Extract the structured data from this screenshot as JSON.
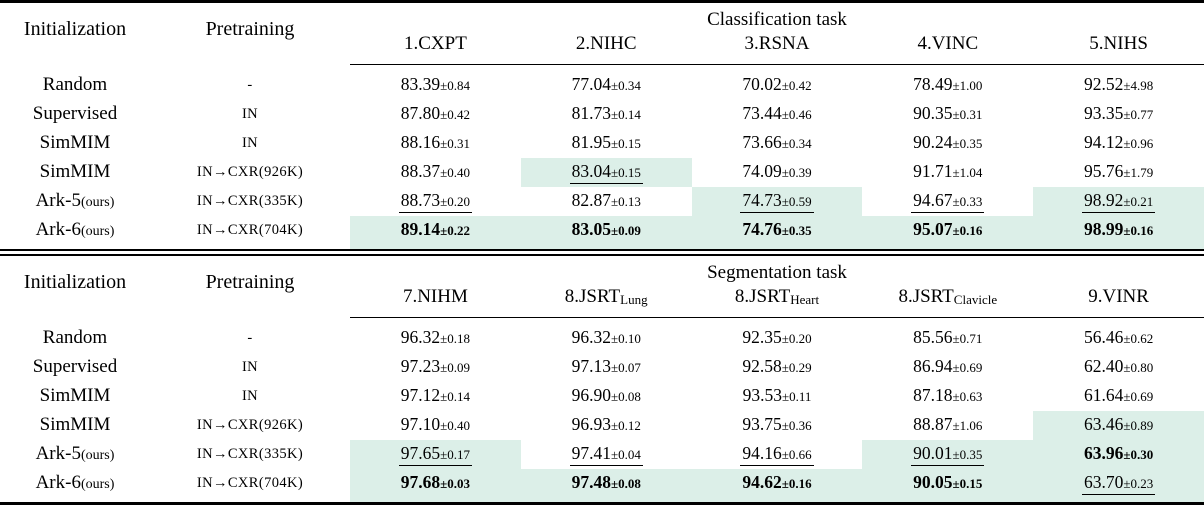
{
  "highlight_color": "#dcefe8",
  "tables": [
    {
      "id": "classification",
      "corner": {
        "initialization": "Initialization",
        "pretraining": "Pretraining"
      },
      "task_label": "Classification task",
      "columns": [
        "1.CXPT",
        "2.NIHC",
        "3.RSNA",
        "4.VINC",
        "5.NIHS"
      ],
      "column_subs": [
        "",
        "",
        "",
        "",
        ""
      ],
      "rows": [
        {
          "init": "Random",
          "init_small": "",
          "pretrain": "-",
          "cells": [
            {
              "v": "83.39",
              "e": "±0.84",
              "f": ""
            },
            {
              "v": "77.04",
              "e": "±0.34",
              "f": ""
            },
            {
              "v": "70.02",
              "e": "±0.42",
              "f": ""
            },
            {
              "v": "78.49",
              "e": "±1.00",
              "f": ""
            },
            {
              "v": "92.52",
              "e": "±4.98",
              "f": ""
            }
          ]
        },
        {
          "init": "Supervised",
          "init_small": "",
          "pretrain": "IN",
          "cells": [
            {
              "v": "87.80",
              "e": "±0.42",
              "f": ""
            },
            {
              "v": "81.73",
              "e": "±0.14",
              "f": ""
            },
            {
              "v": "73.44",
              "e": "±0.46",
              "f": ""
            },
            {
              "v": "90.35",
              "e": "±0.31",
              "f": ""
            },
            {
              "v": "93.35",
              "e": "±0.77",
              "f": ""
            }
          ]
        },
        {
          "init": "SimMIM",
          "init_small": "",
          "pretrain": "IN",
          "cells": [
            {
              "v": "88.16",
              "e": "±0.31",
              "f": ""
            },
            {
              "v": "81.95",
              "e": "±0.15",
              "f": ""
            },
            {
              "v": "73.66",
              "e": "±0.34",
              "f": ""
            },
            {
              "v": "90.24",
              "e": "±0.35",
              "f": ""
            },
            {
              "v": "94.12",
              "e": "±0.96",
              "f": ""
            }
          ]
        },
        {
          "init": "SimMIM",
          "init_small": "",
          "pretrain": "IN→CXR(926K)",
          "cells": [
            {
              "v": "88.37",
              "e": "±0.40",
              "f": ""
            },
            {
              "v": "83.04",
              "e": "±0.15",
              "f": "u h"
            },
            {
              "v": "74.09",
              "e": "±0.39",
              "f": ""
            },
            {
              "v": "91.71",
              "e": "±1.04",
              "f": ""
            },
            {
              "v": "95.76",
              "e": "±1.79",
              "f": ""
            }
          ]
        },
        {
          "init": "Ark-5",
          "init_small": "(ours)",
          "pretrain": "IN→CXR(335K)",
          "cells": [
            {
              "v": "88.73",
              "e": "±0.20",
              "f": "u"
            },
            {
              "v": "82.87",
              "e": "±0.13",
              "f": ""
            },
            {
              "v": "74.73",
              "e": "±0.59",
              "f": "u h"
            },
            {
              "v": "94.67",
              "e": "±0.33",
              "f": "u"
            },
            {
              "v": "98.92",
              "e": "±0.21",
              "f": "u h"
            }
          ]
        },
        {
          "init": "Ark-6",
          "init_small": "(ours)",
          "pretrain": "IN→CXR(704K)",
          "cells": [
            {
              "v": "89.14",
              "e": "±0.22",
              "f": "b h"
            },
            {
              "v": "83.05",
              "e": "±0.09",
              "f": "b h"
            },
            {
              "v": "74.76",
              "e": "±0.35",
              "f": "b h"
            },
            {
              "v": "95.07",
              "e": "±0.16",
              "f": "b h"
            },
            {
              "v": "98.99",
              "e": "±0.16",
              "f": "b h"
            }
          ]
        }
      ]
    },
    {
      "id": "segmentation",
      "corner": {
        "initialization": "Initialization",
        "pretraining": "Pretraining"
      },
      "task_label": "Segmentation task",
      "columns": [
        "7.NIHM",
        "8.JSRT",
        "8.JSRT",
        "8.JSRT",
        "9.VINR"
      ],
      "column_subs": [
        "",
        "Lung",
        "Heart",
        "Clavicle",
        ""
      ],
      "rows": [
        {
          "init": "Random",
          "init_small": "",
          "pretrain": "-",
          "cells": [
            {
              "v": "96.32",
              "e": "±0.18",
              "f": ""
            },
            {
              "v": "96.32",
              "e": "±0.10",
              "f": ""
            },
            {
              "v": "92.35",
              "e": "±0.20",
              "f": ""
            },
            {
              "v": "85.56",
              "e": "±0.71",
              "f": ""
            },
            {
              "v": "56.46",
              "e": "±0.62",
              "f": ""
            }
          ]
        },
        {
          "init": "Supervised",
          "init_small": "",
          "pretrain": "IN",
          "cells": [
            {
              "v": "97.23",
              "e": "±0.09",
              "f": ""
            },
            {
              "v": "97.13",
              "e": "±0.07",
              "f": ""
            },
            {
              "v": "92.58",
              "e": "±0.29",
              "f": ""
            },
            {
              "v": "86.94",
              "e": "±0.69",
              "f": ""
            },
            {
              "v": "62.40",
              "e": "±0.80",
              "f": ""
            }
          ]
        },
        {
          "init": "SimMIM",
          "init_small": "",
          "pretrain": "IN",
          "cells": [
            {
              "v": "97.12",
              "e": "±0.14",
              "f": ""
            },
            {
              "v": "96.90",
              "e": "±0.08",
              "f": ""
            },
            {
              "v": "93.53",
              "e": "±0.11",
              "f": ""
            },
            {
              "v": "87.18",
              "e": "±0.63",
              "f": ""
            },
            {
              "v": "61.64",
              "e": "±0.69",
              "f": ""
            }
          ]
        },
        {
          "init": "SimMIM",
          "init_small": "",
          "pretrain": "IN→CXR(926K)",
          "cells": [
            {
              "v": "97.10",
              "e": "±0.40",
              "f": ""
            },
            {
              "v": "96.93",
              "e": "±0.12",
              "f": ""
            },
            {
              "v": "93.75",
              "e": "±0.36",
              "f": ""
            },
            {
              "v": "88.87",
              "e": "±1.06",
              "f": ""
            },
            {
              "v": "63.46",
              "e": "±0.89",
              "f": "h"
            }
          ]
        },
        {
          "init": "Ark-5",
          "init_small": "(ours)",
          "pretrain": "IN→CXR(335K)",
          "cells": [
            {
              "v": "97.65",
              "e": "±0.17",
              "f": "u h"
            },
            {
              "v": "97.41",
              "e": "±0.04",
              "f": "u"
            },
            {
              "v": "94.16",
              "e": "±0.66",
              "f": "u"
            },
            {
              "v": "90.01",
              "e": "±0.35",
              "f": "u h"
            },
            {
              "v": "63.96",
              "e": "±0.30",
              "f": "b h"
            }
          ]
        },
        {
          "init": "Ark-6",
          "init_small": "(ours)",
          "pretrain": "IN→CXR(704K)",
          "cells": [
            {
              "v": "97.68",
              "e": "±0.03",
              "f": "b h"
            },
            {
              "v": "97.48",
              "e": "±0.08",
              "f": "b h"
            },
            {
              "v": "94.62",
              "e": "±0.16",
              "f": "b h"
            },
            {
              "v": "90.05",
              "e": "±0.15",
              "f": "b h"
            },
            {
              "v": "63.70",
              "e": "±0.23",
              "f": "u h"
            }
          ]
        }
      ]
    }
  ]
}
